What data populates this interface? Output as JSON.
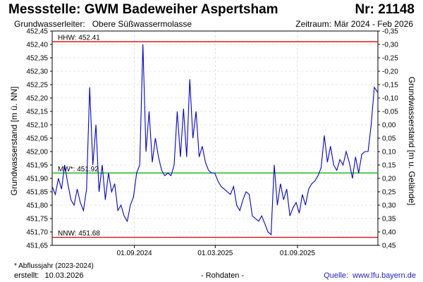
{
  "header": {
    "title": "Messstelle: GWM Badeweiher Aspertsham",
    "station_number": "Nr: 21148",
    "aquifer_label": "Grundwasserleiter:",
    "aquifer_value": "Obere Süßwassermolasse",
    "period_label": "Zeitraum:",
    "period_value": "Mär 2024 - Feb 2026"
  },
  "footer": {
    "footnote": "* Abflussjahr (2023-2024)",
    "created_label": "erstellt:",
    "created_value": "10.03.2026",
    "raw_data_note": "- Rohdaten -",
    "source_label": "Quelle:",
    "source_value": "www.lfu.bayern.de"
  },
  "colors": {
    "series": "#0000dd",
    "hhw_nnw": "#e00000",
    "mw": "#00aa00",
    "grid": "#cccccc",
    "source_link": "#1f1fc8"
  },
  "chart_data": {
    "type": "line",
    "ylabel": "Grundwasserstand [m ü. NN]",
    "ylabel_right": "Grundwasserstand [m u. Gelände]",
    "ylim": [
      451.65,
      452.45
    ],
    "ylim_right": [
      0.45,
      -0.35
    ],
    "xlim": [
      "2024-03-01",
      "2026-02-28"
    ],
    "grid": true,
    "y_ticks": [
      "452,45",
      "452,40",
      "452,35",
      "452,30",
      "452,25",
      "452,20",
      "452,15",
      "452,10",
      "452,05",
      "452,00",
      "451,95",
      "451,90",
      "451,85",
      "451,80",
      "451,75",
      "451,70",
      "451,65"
    ],
    "y_ticks_right": [
      "-0,35",
      "-0,30",
      "-0,25",
      "-0,20",
      "-0,15",
      "-0,10",
      "-0,05",
      "0,00",
      "0,05",
      "0,10",
      "0,15",
      "0,20",
      "0,25",
      "0,30",
      "0,35",
      "0,40",
      "0,45"
    ],
    "x_ticks": [
      {
        "date": "2024-09-01",
        "label": "01.09.2024"
      },
      {
        "date": "2025-03-01",
        "label": "01.03.2025"
      },
      {
        "date": "2025-09-01",
        "label": "01.09.2025"
      }
    ],
    "reference_lines": [
      {
        "name": "HHW",
        "label": "HHW: 452.41",
        "value": 452.41,
        "color": "#e00000"
      },
      {
        "name": "MW",
        "label": "MW*: 451.92",
        "value": 451.92,
        "color": "#00aa00"
      },
      {
        "name": "NNW",
        "label": "NNW: 451.68",
        "value": 451.68,
        "color": "#e00000"
      }
    ],
    "series": [
      {
        "color": "#0000dd",
        "points": [
          [
            "2024-03-01",
            451.87
          ],
          [
            "2024-03-08",
            451.84
          ],
          [
            "2024-03-15",
            451.9
          ],
          [
            "2024-03-22",
            451.86
          ],
          [
            "2024-03-29",
            451.95
          ],
          [
            "2024-04-05",
            451.88
          ],
          [
            "2024-04-12",
            451.82
          ],
          [
            "2024-04-19",
            451.8
          ],
          [
            "2024-04-26",
            451.86
          ],
          [
            "2024-05-03",
            451.81
          ],
          [
            "2024-05-10",
            451.78
          ],
          [
            "2024-05-17",
            451.86
          ],
          [
            "2024-05-24",
            452.24
          ],
          [
            "2024-05-31",
            451.95
          ],
          [
            "2024-06-07",
            452.1
          ],
          [
            "2024-06-14",
            451.85
          ],
          [
            "2024-06-21",
            451.95
          ],
          [
            "2024-06-28",
            451.82
          ],
          [
            "2024-07-05",
            451.92
          ],
          [
            "2024-07-12",
            451.85
          ],
          [
            "2024-07-19",
            451.88
          ],
          [
            "2024-07-26",
            451.78
          ],
          [
            "2024-08-02",
            451.8
          ],
          [
            "2024-08-09",
            451.76
          ],
          [
            "2024-08-16",
            451.74
          ],
          [
            "2024-08-23",
            451.8
          ],
          [
            "2024-08-30",
            451.83
          ],
          [
            "2024-09-06",
            451.92
          ],
          [
            "2024-09-13",
            451.95
          ],
          [
            "2024-09-20",
            452.4
          ],
          [
            "2024-09-27",
            452.0
          ],
          [
            "2024-10-04",
            452.15
          ],
          [
            "2024-10-11",
            451.96
          ],
          [
            "2024-10-18",
            452.05
          ],
          [
            "2024-10-25",
            451.98
          ],
          [
            "2024-11-01",
            451.93
          ],
          [
            "2024-11-08",
            451.91
          ],
          [
            "2024-11-15",
            451.92
          ],
          [
            "2024-11-22",
            451.91
          ],
          [
            "2024-11-29",
            451.95
          ],
          [
            "2024-12-06",
            452.15
          ],
          [
            "2024-12-13",
            451.98
          ],
          [
            "2024-12-20",
            452.16
          ],
          [
            "2024-12-27",
            451.98
          ],
          [
            "2025-01-03",
            452.27
          ],
          [
            "2025-01-10",
            452.05
          ],
          [
            "2025-01-17",
            452.15
          ],
          [
            "2025-01-24",
            451.98
          ],
          [
            "2025-01-31",
            452.02
          ],
          [
            "2025-02-07",
            451.96
          ],
          [
            "2025-02-14",
            451.93
          ],
          [
            "2025-02-21",
            451.92
          ],
          [
            "2025-02-28",
            451.92
          ],
          [
            "2025-03-07",
            451.89
          ],
          [
            "2025-03-14",
            451.87
          ],
          [
            "2025-03-21",
            451.86
          ],
          [
            "2025-03-28",
            451.85
          ],
          [
            "2025-04-04",
            451.84
          ],
          [
            "2025-04-11",
            451.87
          ],
          [
            "2025-04-18",
            451.8
          ],
          [
            "2025-04-25",
            451.78
          ],
          [
            "2025-05-02",
            451.82
          ],
          [
            "2025-05-09",
            451.85
          ],
          [
            "2025-05-16",
            451.84
          ],
          [
            "2025-05-23",
            451.76
          ],
          [
            "2025-05-30",
            451.75
          ],
          [
            "2025-06-06",
            451.74
          ],
          [
            "2025-06-13",
            451.76
          ],
          [
            "2025-06-20",
            451.73
          ],
          [
            "2025-06-27",
            451.7
          ],
          [
            "2025-07-04",
            451.69
          ],
          [
            "2025-07-11",
            451.95
          ],
          [
            "2025-07-18",
            451.8
          ],
          [
            "2025-07-25",
            451.88
          ],
          [
            "2025-08-01",
            451.82
          ],
          [
            "2025-08-08",
            451.86
          ],
          [
            "2025-08-15",
            451.76
          ],
          [
            "2025-08-22",
            451.79
          ],
          [
            "2025-08-29",
            451.81
          ],
          [
            "2025-09-05",
            451.77
          ],
          [
            "2025-09-12",
            451.84
          ],
          [
            "2025-09-19",
            451.8
          ],
          [
            "2025-09-26",
            451.86
          ],
          [
            "2025-10-03",
            451.88
          ],
          [
            "2025-10-10",
            451.89
          ],
          [
            "2025-10-17",
            451.91
          ],
          [
            "2025-10-24",
            451.94
          ],
          [
            "2025-10-31",
            452.06
          ],
          [
            "2025-11-07",
            451.96
          ],
          [
            "2025-11-14",
            452.02
          ],
          [
            "2025-11-21",
            451.95
          ],
          [
            "2025-11-28",
            451.93
          ],
          [
            "2025-12-05",
            451.97
          ],
          [
            "2025-12-12",
            451.95
          ],
          [
            "2025-12-19",
            452.0
          ],
          [
            "2025-12-26",
            451.96
          ],
          [
            "2026-01-02",
            451.9
          ],
          [
            "2026-01-09",
            451.98
          ],
          [
            "2026-01-16",
            451.92
          ],
          [
            "2026-01-23",
            451.99
          ],
          [
            "2026-01-30",
            452.0
          ],
          [
            "2026-02-06",
            452.0
          ],
          [
            "2026-02-13",
            452.1
          ],
          [
            "2026-02-20",
            452.24
          ],
          [
            "2026-02-28",
            452.22
          ]
        ]
      }
    ]
  }
}
